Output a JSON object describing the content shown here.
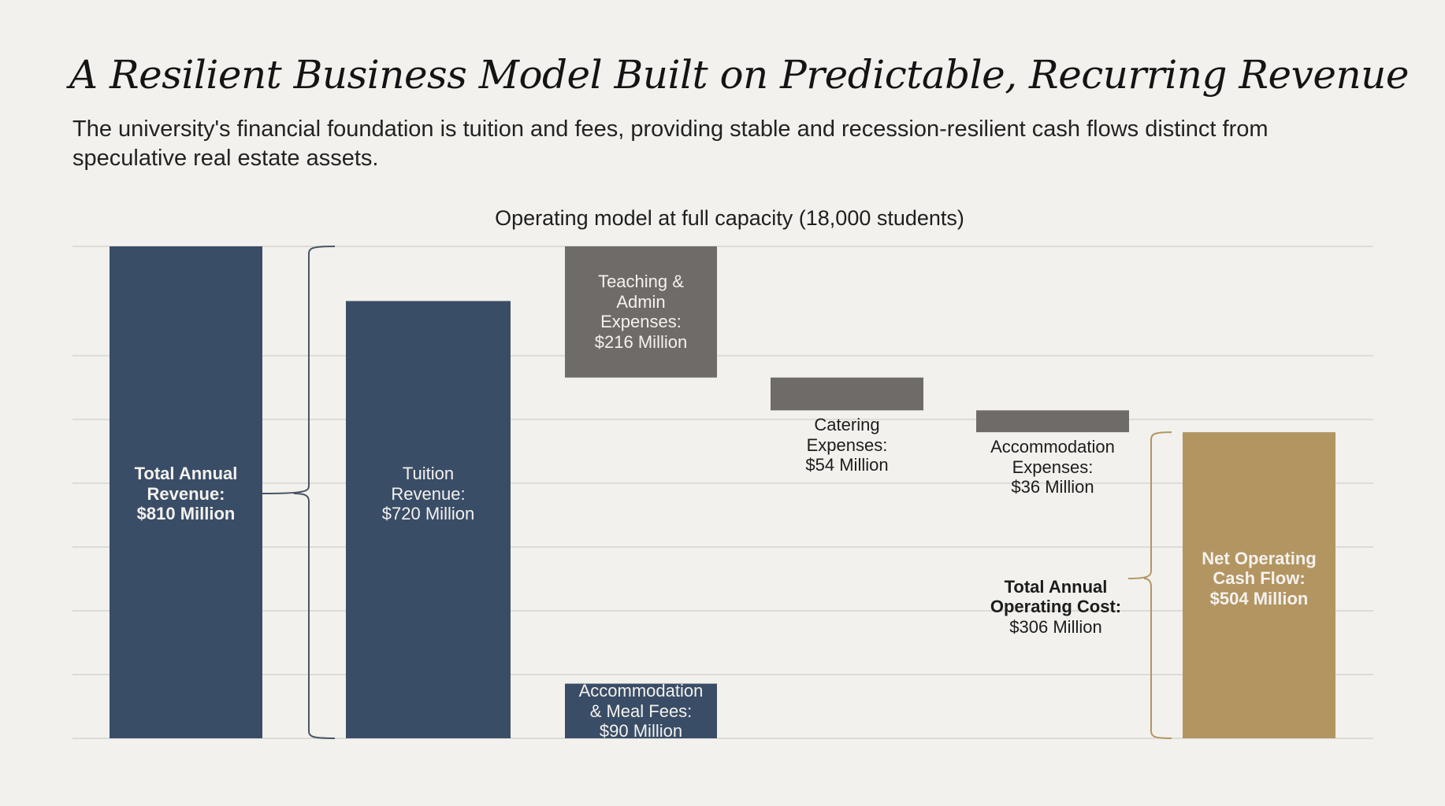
{
  "header": {
    "title": "A Resilient Business Model Built on Predictable, Recurring Revenue",
    "subtitle": "The university's financial foundation is tuition and fees, providing stable and recession-resilient cash flows distinct from speculative real estate assets."
  },
  "colors": {
    "revenue": "#3a4d67",
    "expense": "#6f6b68",
    "net": "#b39562",
    "grid": "#dcdbd6",
    "revenue_brace": "#4b5666",
    "cost_brace": "#b39562",
    "background": "#f2f1ed"
  },
  "chart_data": {
    "type": "bar",
    "subtype": "waterfall",
    "title": "Operating model at full capacity (18,000 students)",
    "units": "Million USD",
    "ylim": [
      0,
      810
    ],
    "grid": true,
    "y_gridlines": [
      0,
      105,
      210,
      315,
      420,
      525,
      630,
      810
    ],
    "bars": [
      {
        "id": "total-revenue",
        "label": "Total Annual Revenue:\n$810 Million",
        "base": 0,
        "top": 810,
        "value": 810,
        "kind": "revenue",
        "label_bold": true,
        "label_position": "inside"
      },
      {
        "id": "tuition-revenue",
        "label": "Tuition\nRevenue:\n$720 Million",
        "base": 0,
        "top": 720,
        "value": 720,
        "kind": "revenue",
        "label_bold": false,
        "label_position": "inside",
        "stack_top": 810
      },
      {
        "id": "accommodation-meal-fees",
        "label": "Accommodation\n& Meal Fees:\n$90 Million",
        "base": 0,
        "top": 90,
        "value": 90,
        "kind": "revenue",
        "label_bold": false,
        "label_position": "inside"
      },
      {
        "id": "teaching-admin-expenses",
        "label": "Teaching &\nAdmin\nExpenses:\n$216 Million",
        "base": 594,
        "top": 810,
        "value": 216,
        "kind": "expense",
        "label_bold": false,
        "label_position": "inside"
      },
      {
        "id": "catering-expenses",
        "label": "Catering\nExpenses:\n$54 Million",
        "base": 540,
        "top": 594,
        "value": 54,
        "kind": "expense",
        "label_bold": false,
        "label_position": "below"
      },
      {
        "id": "accommodation-expenses",
        "label": "Accommodation\nExpenses:\n$36 Million",
        "base": 504,
        "top": 540,
        "value": 36,
        "kind": "expense",
        "label_bold": false,
        "label_position": "below"
      },
      {
        "id": "net-operating-cash-flow",
        "label": "Net Operating\nCash Flow:\n$504 Million",
        "base": 0,
        "top": 504,
        "value": 504,
        "kind": "net",
        "label_bold": true,
        "label_position": "inside"
      }
    ],
    "annotations": [
      {
        "id": "revenue-brace",
        "spans": [
          0,
          810
        ],
        "points_to": "total-revenue",
        "groups": [
          "tuition-revenue",
          "accommodation-meal-fees"
        ]
      },
      {
        "id": "cost-brace",
        "spans": [
          0,
          504
        ],
        "label_bold": "Total Annual\nOperating Cost:",
        "label": "$306 Million",
        "value": 306
      }
    ]
  }
}
